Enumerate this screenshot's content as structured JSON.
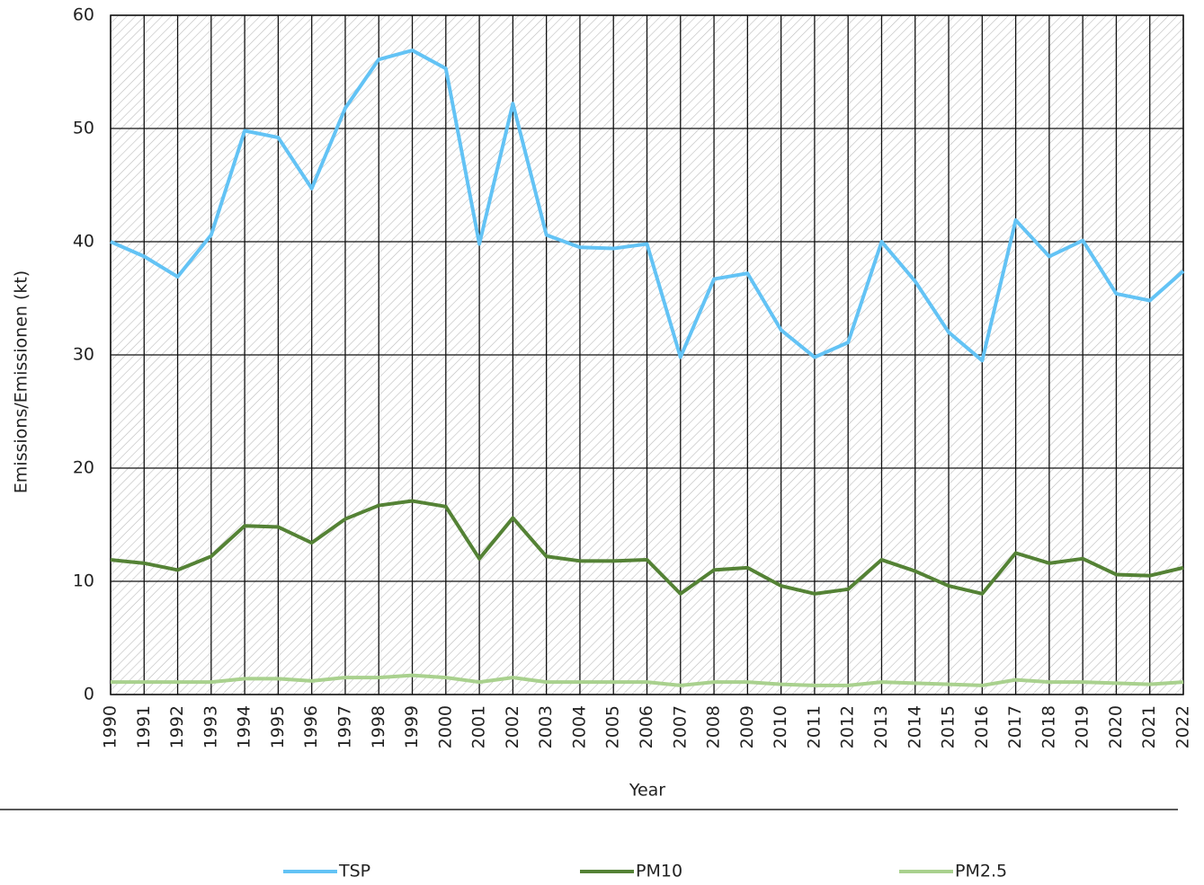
{
  "chart_data": {
    "type": "line",
    "x_label": "Year",
    "y_label": "Emissions/Emissionen (kt)",
    "categories": [
      "1990",
      "1991",
      "1992",
      "1993",
      "1994",
      "1995",
      "1996",
      "1997",
      "1998",
      "1999",
      "2000",
      "2001",
      "2002",
      "2003",
      "2004",
      "2005",
      "2006",
      "2007",
      "2008",
      "2009",
      "2010",
      "2011",
      "2012",
      "2013",
      "2014",
      "2015",
      "2016",
      "2017",
      "2018",
      "2019",
      "2020",
      "2021",
      "2022"
    ],
    "series": [
      {
        "name": "TSP",
        "color": "#63c3f5",
        "values": [
          40.0,
          38.7,
          36.9,
          40.6,
          49.8,
          49.2,
          44.7,
          51.8,
          56.1,
          56.9,
          55.3,
          39.8,
          52.2,
          40.6,
          39.5,
          39.4,
          39.8,
          29.8,
          36.7,
          37.2,
          32.2,
          29.8,
          31.1,
          40.0,
          36.5,
          32.0,
          29.5,
          41.9,
          38.7,
          40.1,
          35.4,
          34.8,
          37.4
        ]
      },
      {
        "name": "PM10",
        "color": "#548235",
        "values": [
          11.9,
          11.6,
          11.0,
          12.2,
          14.9,
          14.8,
          13.4,
          15.5,
          16.7,
          17.1,
          16.6,
          12.0,
          15.6,
          12.2,
          11.8,
          11.8,
          11.9,
          8.9,
          11.0,
          11.2,
          9.6,
          8.9,
          9.3,
          11.9,
          10.9,
          9.6,
          8.9,
          12.5,
          11.6,
          12.0,
          10.6,
          10.5,
          11.2
        ]
      },
      {
        "name": "PM2.5",
        "color": "#a9d18e",
        "values": [
          1.1,
          1.1,
          1.1,
          1.1,
          1.4,
          1.4,
          1.2,
          1.5,
          1.5,
          1.7,
          1.5,
          1.1,
          1.5,
          1.1,
          1.1,
          1.1,
          1.1,
          0.8,
          1.1,
          1.1,
          0.9,
          0.8,
          0.8,
          1.1,
          1.0,
          0.9,
          0.8,
          1.3,
          1.1,
          1.1,
          1.0,
          0.9,
          1.1
        ]
      }
    ],
    "ylim": [
      0,
      60
    ],
    "yticks": [
      0,
      10,
      20,
      30,
      40,
      50,
      60
    ],
    "grid": true
  }
}
